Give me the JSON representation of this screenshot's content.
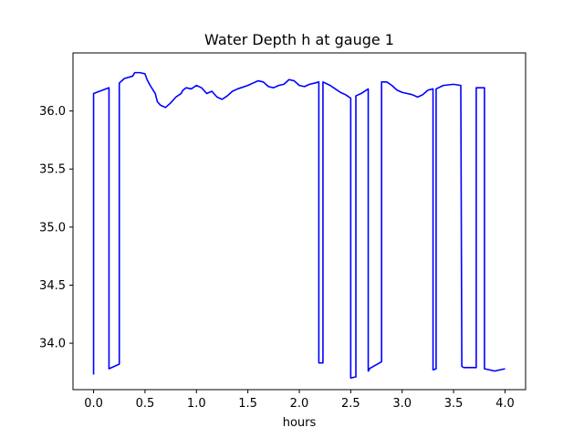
{
  "chart_data": {
    "type": "line",
    "title": "Water Depth h at gauge 1",
    "xlabel": "hours",
    "ylabel": "",
    "xlim": [
      -0.2,
      4.2
    ],
    "ylim": [
      33.6,
      36.5
    ],
    "xticks": [
      0.0,
      0.5,
      1.0,
      1.5,
      2.0,
      2.5,
      3.0,
      3.5,
      4.0
    ],
    "xtick_labels": [
      "0.0",
      "0.5",
      "1.0",
      "1.5",
      "2.0",
      "2.5",
      "3.0",
      "3.5",
      "4.0"
    ],
    "yticks": [
      34.0,
      34.5,
      35.0,
      35.5,
      36.0
    ],
    "ytick_labels": [
      "34.0",
      "34.5",
      "35.0",
      "35.5",
      "36.0"
    ],
    "grid": false,
    "line_color": "#0000ff",
    "series": [
      {
        "x": [
          0.0,
          0.0,
          0.15,
          0.15,
          0.25,
          0.25,
          0.3,
          0.38,
          0.4,
          0.45,
          0.5,
          0.52,
          0.55,
          0.6,
          0.62,
          0.65,
          0.7,
          0.75,
          0.8,
          0.85,
          0.87,
          0.9,
          0.95,
          1.0,
          1.05,
          1.1,
          1.15,
          1.2,
          1.25,
          1.3,
          1.35,
          1.4,
          1.5,
          1.55,
          1.6,
          1.65,
          1.7,
          1.75,
          1.8,
          1.85,
          1.9,
          1.95,
          2.0,
          2.05,
          2.1,
          2.15,
          2.19,
          2.19,
          2.23,
          2.23,
          2.3,
          2.35,
          2.4,
          2.45,
          2.5,
          2.5,
          2.55,
          2.55,
          2.6,
          2.67,
          2.67,
          2.68,
          2.68,
          2.8,
          2.8,
          2.85,
          2.9,
          2.95,
          3.0,
          3.05,
          3.1,
          3.15,
          3.2,
          3.25,
          3.3,
          3.3,
          3.33,
          3.33,
          3.4,
          3.5,
          3.57,
          3.58,
          3.6,
          3.6,
          3.72,
          3.72,
          3.8,
          3.8,
          3.85,
          3.9,
          3.95,
          4.0
        ],
        "y": [
          33.73,
          36.15,
          36.2,
          33.78,
          33.82,
          36.24,
          36.28,
          36.3,
          36.33,
          36.33,
          36.32,
          36.27,
          36.22,
          36.15,
          36.08,
          36.05,
          36.03,
          36.07,
          36.12,
          36.15,
          36.18,
          36.2,
          36.19,
          36.22,
          36.2,
          36.15,
          36.17,
          36.12,
          36.1,
          36.13,
          36.17,
          36.19,
          36.22,
          36.24,
          36.26,
          36.25,
          36.21,
          36.2,
          36.22,
          36.23,
          36.27,
          36.26,
          36.22,
          36.21,
          36.23,
          36.24,
          36.25,
          33.83,
          33.83,
          36.25,
          36.22,
          36.19,
          36.16,
          36.14,
          36.11,
          33.7,
          33.71,
          36.13,
          36.15,
          36.19,
          33.76,
          33.77,
          33.78,
          33.84,
          36.25,
          36.25,
          36.22,
          36.18,
          36.16,
          36.15,
          36.14,
          36.12,
          36.14,
          36.18,
          36.19,
          33.77,
          33.78,
          36.19,
          36.22,
          36.23,
          36.22,
          33.8,
          33.79,
          33.79,
          33.79,
          36.2,
          36.2,
          33.78,
          33.77,
          33.76,
          33.77,
          33.78
        ]
      }
    ]
  }
}
